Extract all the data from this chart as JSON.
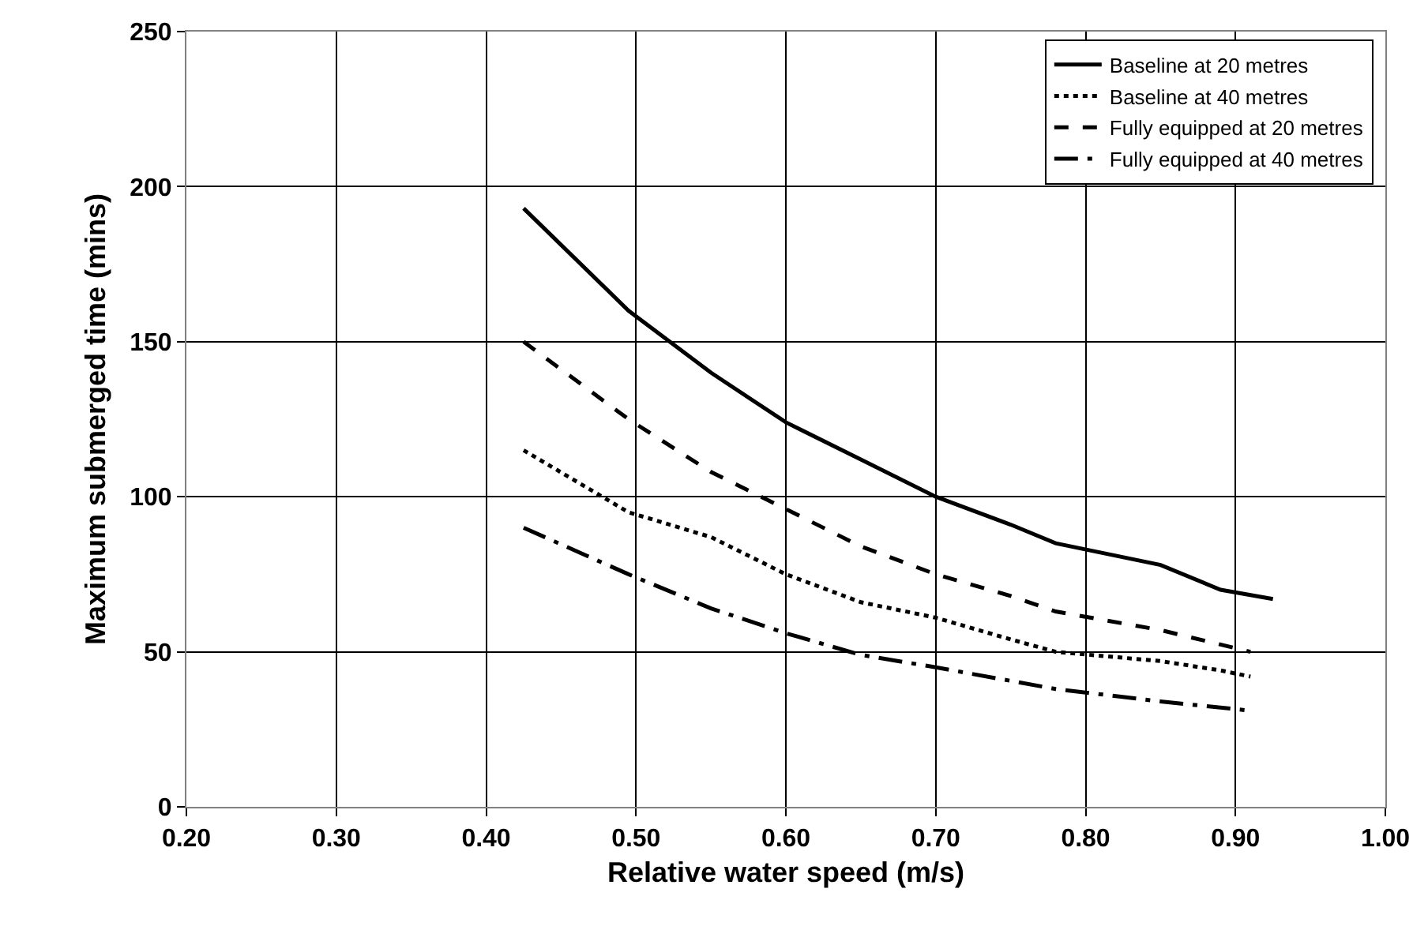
{
  "chart_data": {
    "type": "line",
    "xlabel": "Relative water speed (m/s)",
    "ylabel": "Maximum submerged time (mins)",
    "xlim": [
      0.2,
      1.0
    ],
    "xticks": [
      {
        "value": 0.2,
        "label": "0.20"
      },
      {
        "value": 0.3,
        "label": "0.30"
      },
      {
        "value": 0.4,
        "label": "0.40"
      },
      {
        "value": 0.5,
        "label": "0.50"
      },
      {
        "value": 0.6,
        "label": "0.60"
      },
      {
        "value": 0.7,
        "label": "0.70"
      },
      {
        "value": 0.8,
        "label": "0.80"
      },
      {
        "value": 0.9,
        "label": "0.90"
      },
      {
        "value": 1.0,
        "label": "1.00"
      }
    ],
    "ylim": [
      0,
      250
    ],
    "yticks": [
      0,
      50,
      100,
      150,
      200,
      250
    ],
    "grid": true,
    "legend": "top right",
    "marker": "none",
    "series": [
      {
        "name": "Baseline at 20 metres",
        "color": "#000000",
        "line_style": "solid",
        "x": [
          0.425,
          0.495,
          0.55,
          0.6,
          0.65,
          0.7,
          0.75,
          0.78,
          0.85,
          0.89,
          0.925
        ],
        "values": [
          193,
          160,
          140,
          124,
          112,
          100,
          91,
          85,
          78,
          70,
          67
        ]
      },
      {
        "name": "Baseline at 40 metres",
        "color": "#000000",
        "line_style": "dotted",
        "x": [
          0.425,
          0.495,
          0.55,
          0.6,
          0.65,
          0.7,
          0.75,
          0.78,
          0.85,
          0.89,
          0.91
        ],
        "values": [
          115,
          95,
          87,
          75,
          66,
          61,
          54,
          50,
          47,
          44,
          42
        ]
      },
      {
        "name": "Fully equipped at 20 metres",
        "color": "#000000",
        "line_style": "dashed",
        "x": [
          0.425,
          0.495,
          0.55,
          0.6,
          0.65,
          0.7,
          0.75,
          0.78,
          0.85,
          0.91
        ],
        "values": [
          150,
          125,
          108,
          96,
          84,
          75,
          68,
          63,
          57,
          50
        ]
      },
      {
        "name": "Fully equipped at 40 metres",
        "color": "#000000",
        "line_style": "dashdot",
        "x": [
          0.425,
          0.495,
          0.55,
          0.6,
          0.65,
          0.7,
          0.78,
          0.85,
          0.91
        ],
        "values": [
          90,
          75,
          64,
          56,
          49,
          45,
          38,
          34,
          31
        ]
      }
    ]
  }
}
